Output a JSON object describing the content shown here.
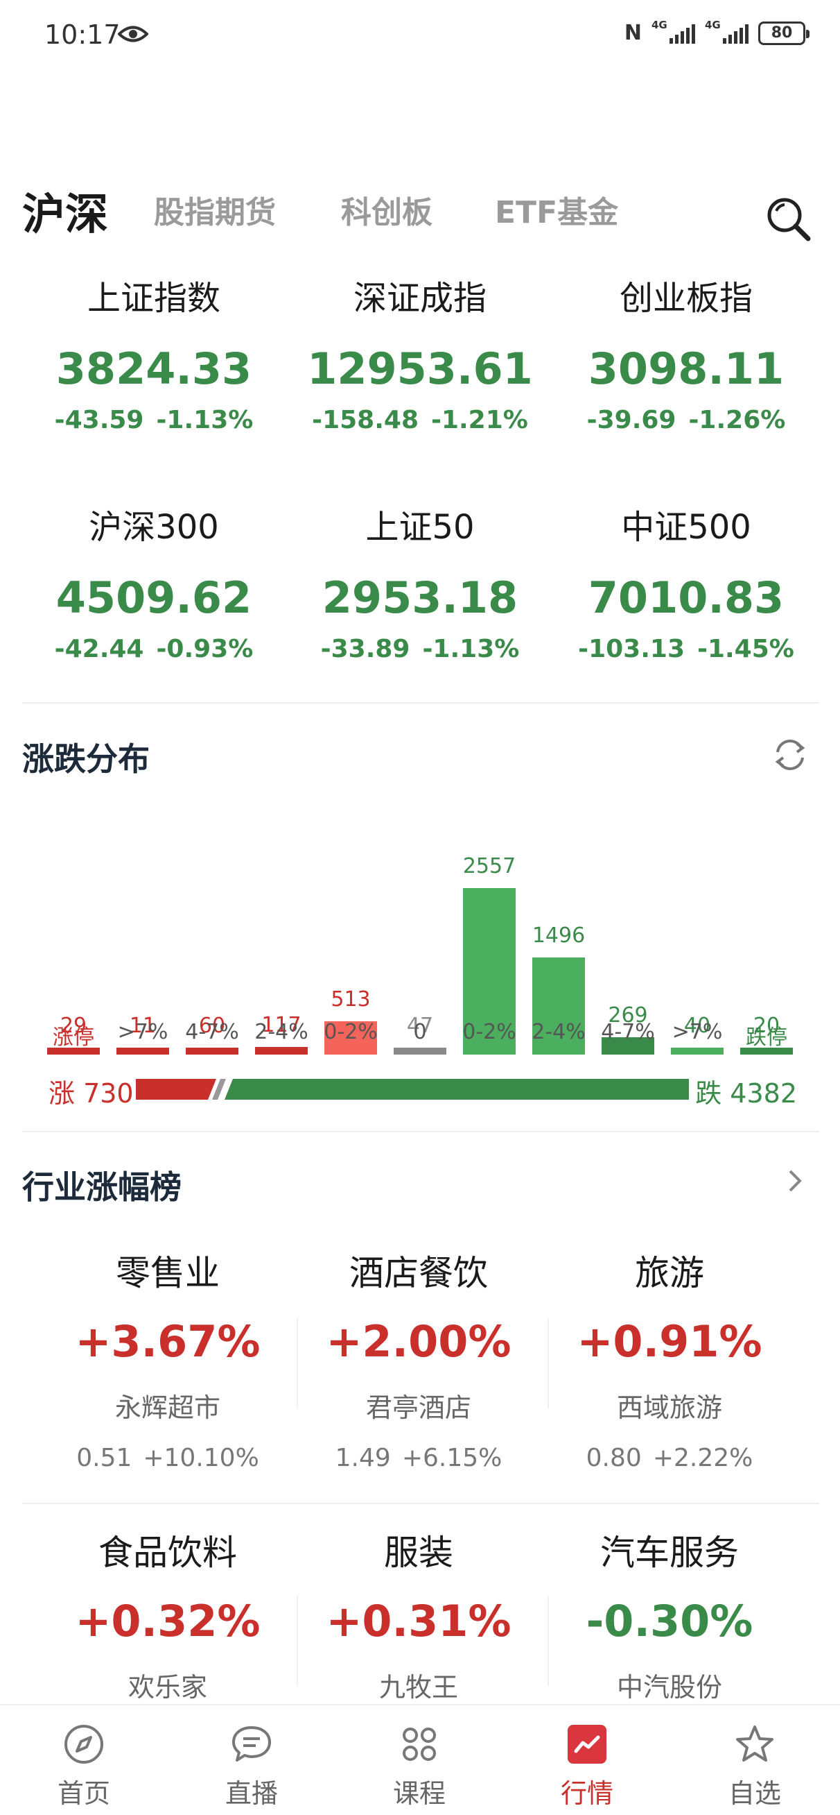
{
  "status_bar": {
    "time": "10:17",
    "nfc": "N",
    "signal1_tag": "4G",
    "signal2_tag": "4G",
    "battery": "80"
  },
  "top_tabs": [
    {
      "label": "沪深",
      "active": true
    },
    {
      "label": "股指期货",
      "active": false
    },
    {
      "label": "科创板",
      "active": false
    },
    {
      "label": "ETF基金",
      "active": false
    }
  ],
  "indices": [
    {
      "name": "上证指数",
      "price": "3824.33",
      "change": "-43.59",
      "pct": "-1.13%"
    },
    {
      "name": "深证成指",
      "price": "12953.61",
      "change": "-158.48",
      "pct": "-1.21%"
    },
    {
      "name": "创业板指",
      "price": "3098.11",
      "change": "-39.69",
      "pct": "-1.26%"
    },
    {
      "name": "沪深300",
      "price": "4509.62",
      "change": "-42.44",
      "pct": "-0.93%"
    },
    {
      "name": "上证50",
      "price": "2953.18",
      "change": "-33.89",
      "pct": "-1.13%"
    },
    {
      "name": "中证500",
      "price": "7010.83",
      "change": "-103.13",
      "pct": "-1.45%"
    }
  ],
  "distribution": {
    "title": "涨跌分布",
    "buckets": [
      {
        "label": "涨停",
        "value": 29,
        "kind": "up_limit"
      },
      {
        "label": ">7%",
        "value": 11,
        "kind": "up"
      },
      {
        "label": "4-7%",
        "value": 60,
        "kind": "up"
      },
      {
        "label": "2-4%",
        "value": 117,
        "kind": "up"
      },
      {
        "label": "0-2%",
        "value": 513,
        "kind": "up_light"
      },
      {
        "label": "0",
        "value": 47,
        "kind": "flat"
      },
      {
        "label": "0-2%",
        "value": 2557,
        "kind": "down"
      },
      {
        "label": "2-4%",
        "value": 1496,
        "kind": "down"
      },
      {
        "label": "4-7%",
        "value": 269,
        "kind": "down_dark"
      },
      {
        "label": ">7%",
        "value": 40,
        "kind": "down"
      },
      {
        "label": "跌停",
        "value": 20,
        "kind": "down_limit"
      }
    ],
    "up_label": "涨 730",
    "down_label": "跌 4382",
    "up_total": 730,
    "down_total": 4382
  },
  "industry": {
    "title": "行业涨幅榜",
    "items": [
      {
        "name": "零售业",
        "pct": "+3.67%",
        "dir": "up",
        "leader": "永辉超市",
        "leader_price": "0.51",
        "leader_pct": "+10.10%"
      },
      {
        "name": "酒店餐饮",
        "pct": "+2.00%",
        "dir": "up",
        "leader": "君亭酒店",
        "leader_price": "1.49",
        "leader_pct": "+6.15%"
      },
      {
        "name": "旅游",
        "pct": "+0.91%",
        "dir": "up",
        "leader": "西域旅游",
        "leader_price": "0.80",
        "leader_pct": "+2.22%"
      },
      {
        "name": "食品饮料",
        "pct": "+0.32%",
        "dir": "up",
        "leader": "欢乐家"
      },
      {
        "name": "服装",
        "pct": "+0.31%",
        "dir": "up",
        "leader": "九牧王"
      },
      {
        "name": "汽车服务",
        "pct": "-0.30%",
        "dir": "down",
        "leader": "中汽股份"
      }
    ]
  },
  "bottom_nav": [
    {
      "label": "首页",
      "icon": "compass-icon",
      "active": false
    },
    {
      "label": "直播",
      "icon": "chat-bubble-icon",
      "active": false
    },
    {
      "label": "课程",
      "icon": "grid-clover-icon",
      "active": false
    },
    {
      "label": "行情",
      "icon": "trend-chart-icon",
      "active": true
    },
    {
      "label": "自选",
      "icon": "star-icon",
      "active": false
    }
  ],
  "colors": {
    "up": "#c9302c",
    "up_light": "#f4645a",
    "down": "#4caf5f",
    "down_dark": "#3a8a4a",
    "flat": "#8a8a8a"
  }
}
